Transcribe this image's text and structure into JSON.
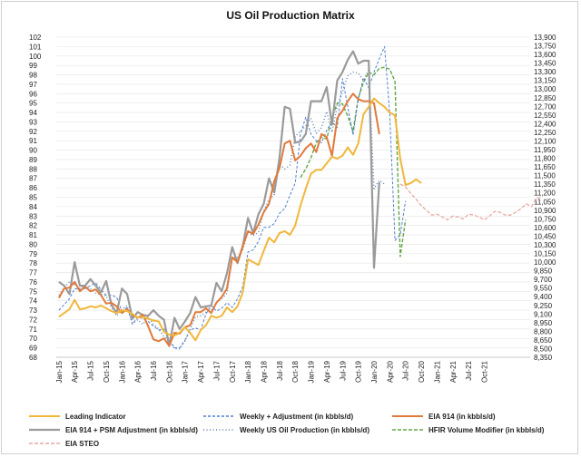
{
  "chart_data": {
    "type": "line",
    "title": "US Oil Production Matrix",
    "x_ticks": [
      "Jan-15",
      "Apr-15",
      "Jul-15",
      "Oct-15",
      "Jan-16",
      "Apr-16",
      "Jul-16",
      "Oct-16",
      "Jan-17",
      "Apr-17",
      "Jul-17",
      "Oct-17",
      "Jan-18",
      "Apr-18",
      "Jul-18",
      "Oct-18",
      "Jan-19",
      "Apr-19",
      "Jul-19",
      "Oct-19",
      "Jan-20",
      "Apr-20",
      "Jul-20",
      "Oct-20",
      "Jan-21",
      "Apr-21",
      "Jul-21",
      "Oct-21"
    ],
    "y_left": {
      "min": 68,
      "max": 102,
      "step": 1
    },
    "y_right": {
      "min": 8350,
      "max": 13900,
      "step": 150,
      "format": "thousands"
    },
    "grid": true,
    "legend_position": "bottom",
    "series": [
      {
        "name": "Leading Indicator",
        "axis": "left",
        "color": "#f0b73c",
        "dash": "",
        "width": 2,
        "values": [
          72.3,
          72.7,
          73.1,
          74.1,
          73.1,
          73.2,
          73.4,
          73.3,
          73.5,
          73.2,
          72.9,
          72.7,
          73.0,
          72.9,
          72.6,
          72.2,
          72.3,
          72.1,
          71.9,
          71.8,
          70.7,
          70.4,
          70.3,
          70.6,
          71.2,
          70.6,
          69.8,
          70.9,
          71.4,
          72.4,
          72.2,
          72.4,
          73.3,
          72.8,
          73.4,
          74.9,
          78.4,
          78.1,
          77.8,
          79.3,
          80.7,
          80.2,
          81.2,
          81.4,
          81.0,
          82.0,
          84.1,
          85.9,
          87.5,
          87.9,
          87.9,
          88.6,
          89.3,
          89.1,
          89.4,
          90.3,
          89.5,
          90.7,
          93.8,
          94.6,
          95.5,
          95.0,
          94.6,
          94.0,
          93.7,
          89.1,
          86.3,
          86.5,
          86.9,
          86.5
        ],
        "start": 0
      },
      {
        "name": "Weekly + Adjustment (in kbbls/d)",
        "axis": "left",
        "color": "#4f7fcf",
        "dash": "3,2",
        "width": 1,
        "values": [
          73.0,
          73.6,
          74.2,
          75.3,
          75.2,
          75.3,
          75.6,
          75.9,
          75.2,
          74.6,
          74.6,
          74.4,
          72.9,
          73.3,
          71.5,
          72.3,
          72.1,
          71.8,
          71.3,
          70.9,
          71.0,
          69.9,
          69.0,
          69.0,
          69.8,
          70.9,
          71.1,
          70.9,
          72.6,
          73.5,
          72.9,
          73.2,
          73.8,
          73.3,
          74.2,
          75.5,
          79.2,
          79.4,
          80.3,
          81.8,
          81.8,
          82.2,
          83.3,
          83.8,
          85.2,
          86.5,
          91.7,
          93.5,
          91.7,
          91.0,
          90.8,
          92.1,
          93.0,
          92.4,
          97.6,
          94.6,
          91.6,
          95.4,
          97.7,
          96.6,
          98.3,
          99.7,
          101.0,
          93.9,
          80.4,
          81.0,
          84.6
        ],
        "start": 0
      },
      {
        "name": "EIA 914 (in kbbls/d)",
        "axis": "left",
        "color": "#e07a3a",
        "dash": "",
        "width": 2,
        "values": [
          74.3,
          75.3,
          75.4,
          76.0,
          75.0,
          75.5,
          75.0,
          75.2,
          74.6,
          73.7,
          73.8,
          73.4,
          72.7,
          73.1,
          72.5,
          72.2,
          72.5,
          71.3,
          69.9,
          69.7,
          70.0,
          69.2,
          70.6,
          70.5,
          71.2,
          71.4,
          72.8,
          72.8,
          73.2,
          72.7,
          73.8,
          74.4,
          75.3,
          78.6,
          78.1,
          79.8,
          81.4,
          81.1,
          82.1,
          83.4,
          84.3,
          86.7,
          88.1,
          90.7,
          91.0,
          88.9,
          89.4,
          90.2,
          90.7,
          89.8,
          91.7,
          91.4,
          89.4,
          93.4,
          94.2,
          95.2,
          96.0,
          95.4,
          95.2,
          95.2,
          95.0,
          91.7
        ],
        "start": 0
      },
      {
        "name": "EIA 914 + PSM Adjustment (in kbbls/d)",
        "axis": "left",
        "color": "#9a9a9a",
        "dash": "",
        "width": 2.2,
        "values": [
          76.0,
          75.6,
          74.7,
          78.1,
          75.6,
          75.6,
          76.3,
          75.6,
          74.9,
          76.1,
          73.6,
          72.7,
          75.3,
          74.7,
          72.1,
          72.8,
          72.5,
          72.4,
          73.0,
          72.4,
          72.0,
          69.2,
          72.2,
          71.0,
          71.8,
          72.7,
          74.4,
          73.3,
          73.4,
          73.5,
          75.9,
          75.0,
          76.9,
          79.7,
          78.0,
          79.8,
          82.8,
          81.2,
          83.2,
          84.3,
          87.0,
          85.5,
          89.2,
          94.6,
          94.4,
          90.8,
          90.9,
          91.7,
          95.2,
          95.2,
          95.2,
          96.7,
          92.7,
          97.4,
          98.3,
          99.6,
          100.5,
          99.2,
          99.5,
          99.5,
          77.5,
          86.6
        ],
        "start": 0
      },
      {
        "name": "Weekly US Oil Production (in kbbls/d)",
        "axis": "left",
        "color": "#5b7fb0",
        "dash": "1,2.5",
        "width": 1.4,
        "values": [
          74.6,
          75.4,
          76.0,
          75.7,
          75.3,
          75.6,
          75.3,
          74.8,
          74.7,
          74.5,
          73.3,
          72.4,
          73.1,
          73.5,
          71.6,
          72.0,
          71.5,
          72.3,
          71.5,
          71.0,
          70.2,
          69.8,
          68.9,
          68.9,
          69.7,
          71.0,
          72.3,
          72.4,
          72.8,
          73.0,
          73.8,
          74.2,
          74.8,
          78.5,
          78.6,
          79.4,
          81.3,
          80.9,
          81.3,
          83.5,
          84.8,
          85.2,
          88.5,
          88.0,
          88.4,
          91.5,
          92.0,
          92.6,
          93.4,
          91.8,
          92.4,
          94.1,
          91.9,
          94.7,
          96.2,
          97.9,
          98.3,
          98.2,
          97.4,
          98.6,
          85.9,
          86.8,
          86.4
        ],
        "start": 0
      },
      {
        "name": "HFIR Volume Modifier (in kbbls/d)",
        "axis": "left",
        "color": "#62a744",
        "dash": "4,2",
        "width": 1.4,
        "values": [
          87.1,
          88.0,
          89.2,
          90.8,
          91.4,
          91.2,
          93.4,
          95.0,
          94.9,
          93.6,
          92.0,
          95.5,
          97.2,
          98.3,
          98.0,
          98.7,
          98.8,
          98.6,
          97.3,
          78.7,
          82.6
        ],
        "start": 46
      },
      {
        "name": "EIA STEO",
        "axis": "left",
        "color": "#e6a9a3",
        "dash": "4,2",
        "width": 1.3,
        "values": [
          86.4,
          86.1,
          85.4,
          84.8,
          84.1,
          83.6,
          83.1,
          83.2,
          82.9,
          82.6,
          83.0,
          82.9,
          82.7,
          83.2,
          83.1,
          82.9,
          82.6,
          83.0,
          83.5,
          83.4,
          83.1,
          83.1,
          83.4,
          83.8,
          84.3,
          84.0,
          84.9,
          85.0
        ],
        "start": 65
      }
    ]
  }
}
